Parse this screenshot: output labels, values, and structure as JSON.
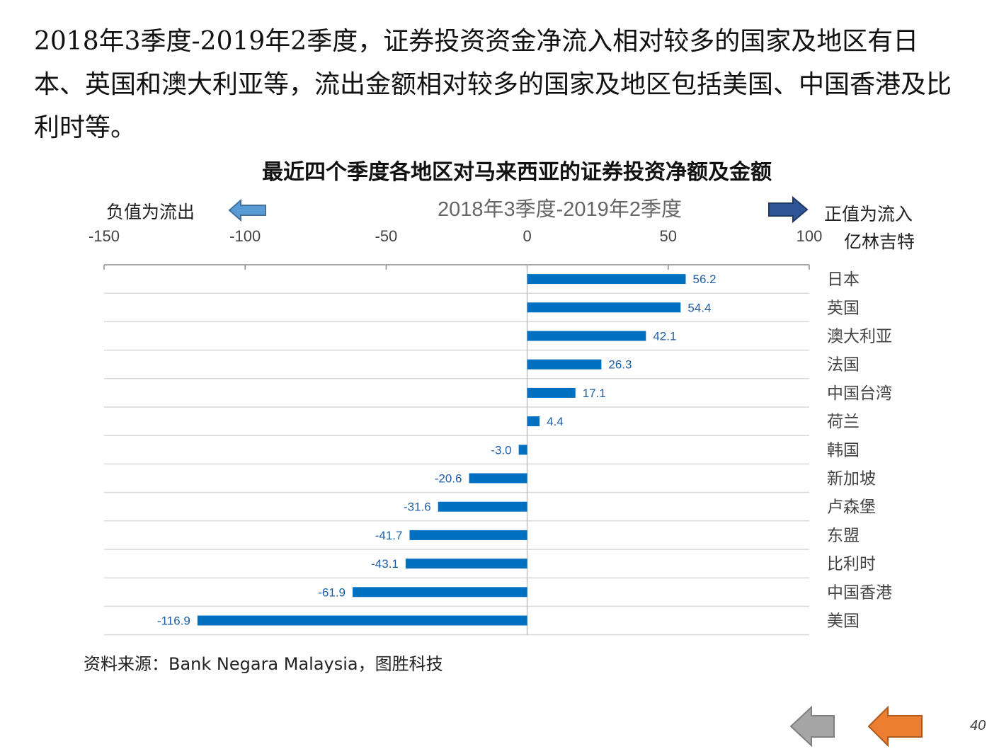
{
  "intro": {
    "text": "2018年3季度-2019年2季度，证券投资资金净流入相对较多的国家及地区有日本、英国和澳大利亚等，流出金额相对较多的国家及地区包括美国、中国香港及比利时等。"
  },
  "notes": {
    "left": "负值为流出",
    "right": "正值为流入",
    "unit": "亿林吉特"
  },
  "colors": {
    "bar": "#0070c0",
    "value_label": "#1f5fa6",
    "arrow_left": "#5b9bd5",
    "arrow_right": "#2f5597",
    "nav_back": "#a6a6a6",
    "nav_forward": "#ed7d31"
  },
  "nav": {
    "back_icon": "gray-left-arrow-icon",
    "forward_icon": "orange-left-arrow-icon"
  },
  "source": "资料来源：Bank Negara Malaysia，图胜科技",
  "page_number": "40",
  "chart_data": {
    "type": "bar",
    "orientation": "horizontal",
    "title": "最近四个季度各地区对马来西亚的证券投资净额及金额",
    "subtitle": "2018年3季度-2019年2季度",
    "categories": [
      "日本",
      "英国",
      "澳大利亚",
      "法国",
      "中国台湾",
      "荷兰",
      "韩国",
      "新加坡",
      "卢森堡",
      "东盟",
      "比利时",
      "中国香港",
      "美国"
    ],
    "values": [
      56.2,
      54.4,
      42.1,
      26.3,
      17.1,
      4.4,
      -3.0,
      -20.6,
      -31.6,
      -41.7,
      -43.1,
      -61.9,
      -116.9
    ],
    "value_labels": [
      "56.2",
      "54.4",
      "42.1",
      "26.3",
      "17.1",
      "4.4",
      "-3.0",
      "-20.6",
      "-31.6",
      "-41.7",
      "-43.1",
      "-61.9",
      "-116.9"
    ],
    "xlim": [
      -150,
      100
    ],
    "xticks": [
      "-150",
      "-100",
      "-50",
      "0",
      "50",
      "100"
    ],
    "axis_position": "top",
    "category_labels_position": "right",
    "grid": "horizontal"
  }
}
